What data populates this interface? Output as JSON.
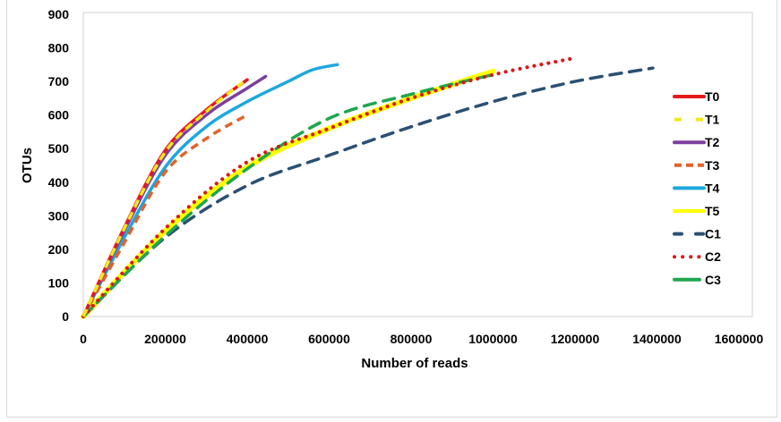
{
  "chart_data": {
    "type": "line",
    "title": "",
    "xlabel": "Number of reads",
    "ylabel": "OTUs",
    "xlim": [
      0,
      1600000
    ],
    "ylim": [
      0,
      900
    ],
    "x_ticks": [
      "0",
      "200000",
      "400000",
      "600000",
      "800000",
      "1000000",
      "1200000",
      "1400000",
      "1600000"
    ],
    "y_ticks": [
      "0",
      "100",
      "200",
      "300",
      "400",
      "500",
      "600",
      "700",
      "800",
      "900"
    ],
    "grid": false,
    "legend_position": "right",
    "series": [
      {
        "name": "T0",
        "color": "#e41a1c",
        "style": "solid",
        "x": [
          0,
          100000,
          200000,
          300000,
          400000
        ],
        "y": [
          0,
          265,
          495,
          615,
          705
        ]
      },
      {
        "name": "T1",
        "color": "#f5e81c",
        "style": "dashed",
        "x": [
          0,
          100000,
          200000,
          300000,
          390000
        ],
        "y": [
          0,
          262,
          490,
          610,
          698
        ]
      },
      {
        "name": "T2",
        "color": "#7b3f9e",
        "style": "solid",
        "x": [
          0,
          100000,
          200000,
          300000,
          400000,
          445000
        ],
        "y": [
          0,
          255,
          480,
          600,
          680,
          715
        ]
      },
      {
        "name": "T3",
        "color": "#e2622c",
        "style": "dashed",
        "x": [
          0,
          100000,
          200000,
          300000,
          400000
        ],
        "y": [
          0,
          220,
          430,
          530,
          600
        ]
      },
      {
        "name": "T4",
        "color": "#1ea7de",
        "style": "solid",
        "x": [
          0,
          100000,
          200000,
          300000,
          400000,
          500000,
          560000,
          620000
        ],
        "y": [
          0,
          235,
          445,
          565,
          640,
          700,
          735,
          750
        ]
      },
      {
        "name": "T5",
        "color": "#ffff00",
        "style": "solid",
        "x": [
          0,
          200000,
          400000,
          600000,
          800000,
          1000000
        ],
        "y": [
          0,
          255,
          445,
          560,
          650,
          730
        ]
      },
      {
        "name": "C1",
        "color": "#2b5073",
        "style": "long-dash",
        "x": [
          0,
          200000,
          400000,
          600000,
          800000,
          1000000,
          1200000,
          1390000
        ],
        "y": [
          0,
          235,
          390,
          480,
          565,
          640,
          700,
          740
        ]
      },
      {
        "name": "C2",
        "color": "#d7191c",
        "style": "dotted",
        "x": [
          0,
          200000,
          400000,
          600000,
          800000,
          1000000,
          1200000
        ],
        "y": [
          0,
          262,
          460,
          560,
          650,
          720,
          770
        ]
      },
      {
        "name": "C3",
        "color": "#1fa64f",
        "style": "long-dash",
        "x": [
          0,
          200000,
          400000,
          600000,
          800000,
          1000000
        ],
        "y": [
          0,
          240,
          440,
          590,
          662,
          720
        ]
      }
    ]
  }
}
